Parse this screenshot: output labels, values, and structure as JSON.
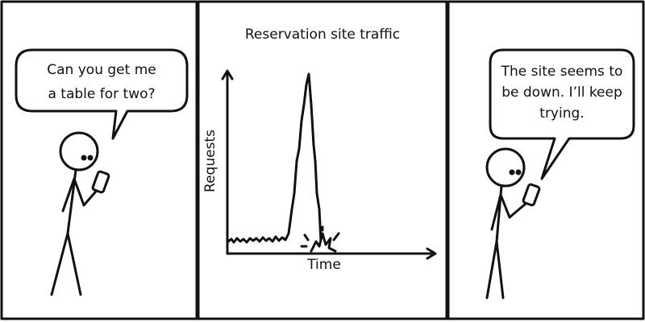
{
  "panels": [
    {
      "speech": [
        "Can you get me",
        "a table for two?"
      ]
    },
    {
      "chart_title": "Reservation site traffic",
      "y_label": "Requests",
      "x_label": "Time"
    },
    {
      "speech": [
        "The site seems to",
        "be down. I’ll keep",
        "trying."
      ]
    }
  ]
}
